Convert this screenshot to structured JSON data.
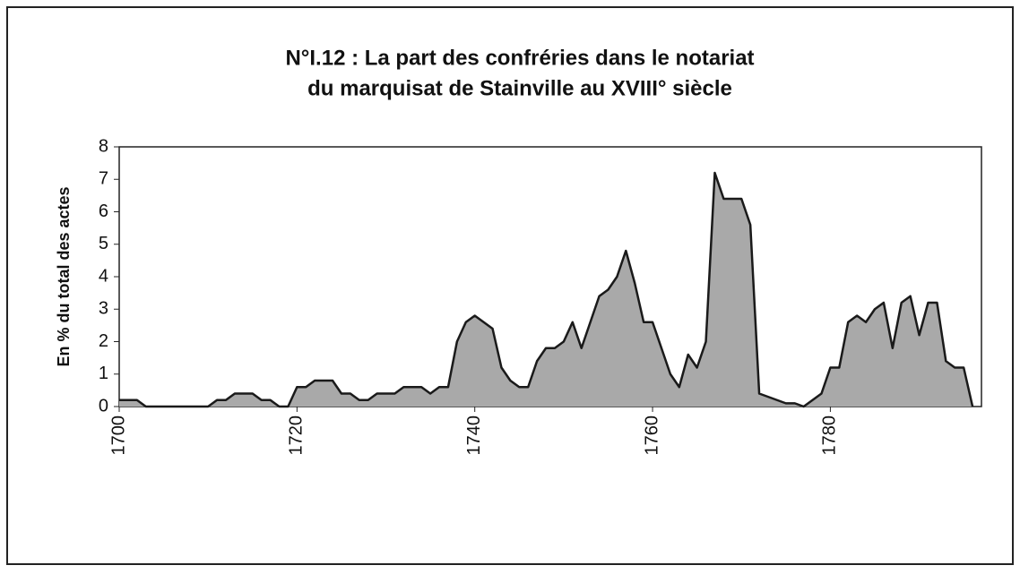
{
  "chart_data": {
    "type": "area",
    "title": [
      "N°I.12 : La part des confréries dans le notariat",
      "du marquisat de Stainville au XVIII° siècle"
    ],
    "y_label": "En % du total des actes",
    "x": [
      1700,
      1701,
      1702,
      1703,
      1704,
      1705,
      1706,
      1707,
      1708,
      1709,
      1710,
      1711,
      1712,
      1713,
      1714,
      1715,
      1716,
      1717,
      1718,
      1719,
      1720,
      1721,
      1722,
      1723,
      1724,
      1725,
      1726,
      1727,
      1728,
      1729,
      1730,
      1731,
      1732,
      1733,
      1734,
      1735,
      1736,
      1737,
      1738,
      1739,
      1740,
      1741,
      1742,
      1743,
      1744,
      1745,
      1746,
      1747,
      1748,
      1749,
      1750,
      1751,
      1752,
      1753,
      1754,
      1755,
      1756,
      1757,
      1758,
      1759,
      1760,
      1761,
      1762,
      1763,
      1764,
      1765,
      1766,
      1767,
      1768,
      1769,
      1770,
      1771,
      1772,
      1773,
      1774,
      1775,
      1776,
      1777,
      1778,
      1779,
      1780,
      1781,
      1782,
      1783,
      1784,
      1785,
      1786,
      1787,
      1788,
      1789,
      1790,
      1791,
      1792,
      1793,
      1794,
      1795,
      1796
    ],
    "values": [
      0.2,
      0.2,
      0.2,
      0,
      0,
      0,
      0,
      0,
      0,
      0,
      0,
      0.2,
      0.2,
      0.4,
      0.4,
      0.4,
      0.2,
      0.2,
      0,
      0,
      0.6,
      0.6,
      0.8,
      0.8,
      0.8,
      0.4,
      0.4,
      0.2,
      0.2,
      0.4,
      0.4,
      0.4,
      0.6,
      0.6,
      0.6,
      0.4,
      0.6,
      0.6,
      2.0,
      2.6,
      2.8,
      2.6,
      2.4,
      1.2,
      0.8,
      0.6,
      0.6,
      1.4,
      1.8,
      1.8,
      2.0,
      2.6,
      1.8,
      2.6,
      3.4,
      3.6,
      4.0,
      4.8,
      3.8,
      2.6,
      2.6,
      1.8,
      1.0,
      0.6,
      1.6,
      1.2,
      2.0,
      7.2,
      6.4,
      6.4,
      6.4,
      5.6,
      0.4,
      0.3,
      0.2,
      0.1,
      0.1,
      0,
      0.2,
      0.4,
      1.2,
      1.2,
      2.6,
      2.8,
      2.6,
      3.0,
      3.2,
      1.8,
      3.2,
      3.4,
      2.2,
      3.2,
      3.2,
      1.4,
      1.2,
      1.2,
      0
    ],
    "color": "#a9a9a9",
    "line_color": "#1a1a1a",
    "xlim": [
      1700,
      1797
    ],
    "xticks": [
      1700,
      1720,
      1740,
      1760,
      1780
    ],
    "ylim": [
      0,
      8
    ],
    "yticks": [
      0,
      1,
      2,
      3,
      4,
      5,
      6,
      7,
      8
    ]
  }
}
